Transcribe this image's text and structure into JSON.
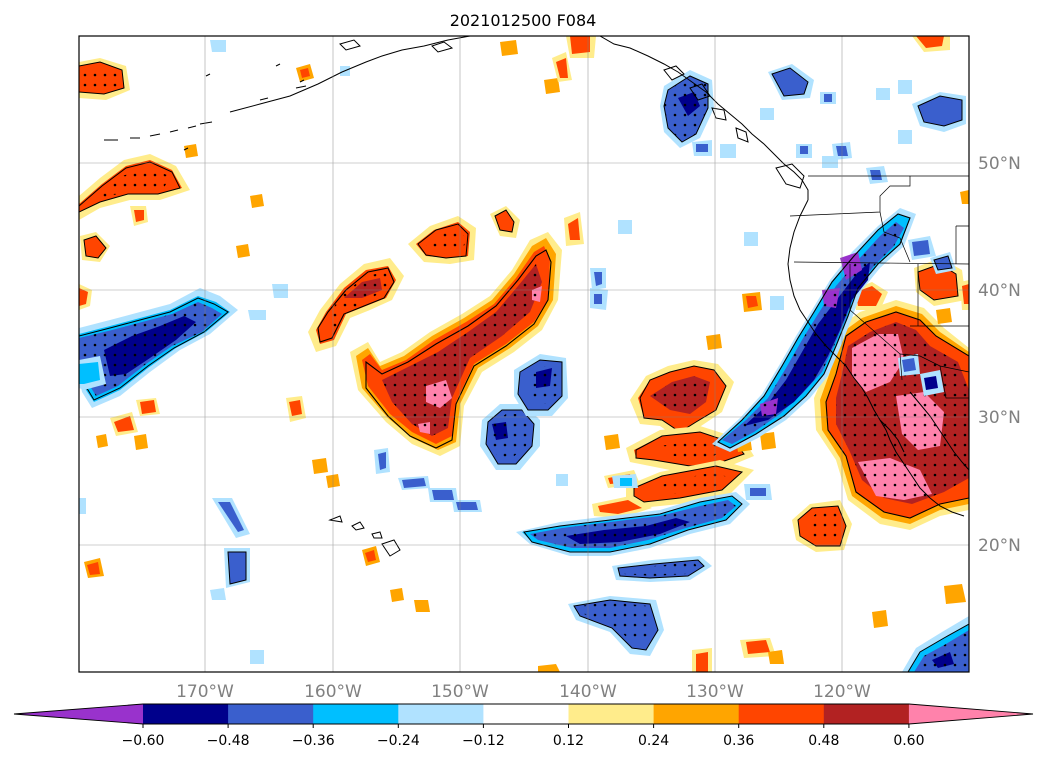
{
  "title": "2021012500 F084",
  "map": {
    "lon_range": [
      -180,
      -110
    ],
    "lat_range": [
      10,
      60
    ],
    "lon_labels": [
      "170°W",
      "160°W",
      "150°W",
      "140°W",
      "130°W",
      "120°W"
    ],
    "lat_labels": [
      "50°N",
      "40°N",
      "30°N",
      "20°N"
    ]
  },
  "colorbar": {
    "ticks": [
      "−0.60",
      "−0.48",
      "−0.36",
      "−0.24",
      "−0.12",
      "0.12",
      "0.24",
      "0.36",
      "0.48",
      "0.60"
    ],
    "colors": [
      "#9932CC",
      "#00008B",
      "#3A5FCD",
      "#00BFFF",
      "#B0E2FF",
      "#FFFFFF",
      "#FFEC8B",
      "#FFA500",
      "#FF4500",
      "#B22222",
      "#FF82AB"
    ],
    "extend": "both"
  }
}
